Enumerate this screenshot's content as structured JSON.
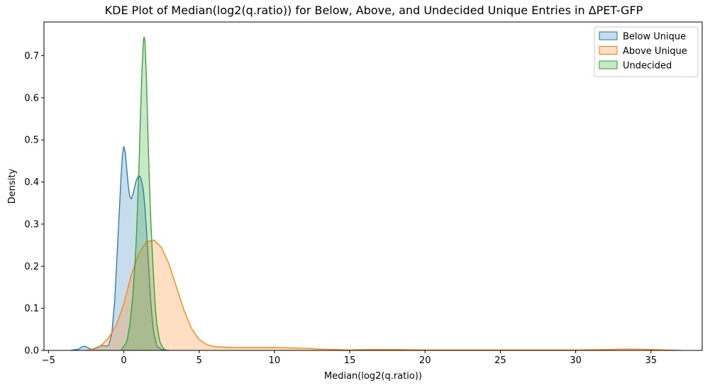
{
  "chart_data": {
    "type": "area",
    "title": "KDE Plot of Median(log2(q.ratio)) for Below, Above, and Undecided Unique Entries in ΔPET-GFP",
    "xlabel": "Median(log2(q.ratio))",
    "ylabel": "Density",
    "xlim": [
      -5.3,
      38.4
    ],
    "ylim": [
      0,
      0.78
    ],
    "xticks": [
      -5,
      0,
      5,
      10,
      15,
      20,
      25,
      30,
      35
    ],
    "yticks": [
      0.0,
      0.1,
      0.2,
      0.3,
      0.4,
      0.5,
      0.6,
      0.7
    ],
    "xtick_labels": [
      "−5",
      "0",
      "5",
      "10",
      "15",
      "20",
      "25",
      "30",
      "35"
    ],
    "ytick_labels": [
      "0.0",
      "0.1",
      "0.2",
      "0.3",
      "0.4",
      "0.5",
      "0.6",
      "0.7"
    ],
    "grid": false,
    "legend_position": "top-right",
    "series": [
      {
        "name": "Below Unique",
        "color": "#1f77b4",
        "x": [
          -3.5,
          -3.0,
          -2.8,
          -2.6,
          -2.4,
          -2.2,
          -2.0,
          -1.8,
          -1.6,
          -1.4,
          -1.2,
          -1.0,
          -0.8,
          -0.6,
          -0.4,
          -0.2,
          -0.1,
          0.0,
          0.1,
          0.2,
          0.3,
          0.4,
          0.5,
          0.6,
          0.7,
          0.8,
          0.9,
          1.0,
          1.1,
          1.2,
          1.3,
          1.4,
          1.5,
          1.6,
          1.7,
          1.8,
          1.9,
          2.0,
          2.2,
          2.5,
          3.0
        ],
        "y": [
          0.0,
          0.003,
          0.008,
          0.01,
          0.007,
          0.003,
          0.003,
          0.006,
          0.01,
          0.012,
          0.01,
          0.012,
          0.04,
          0.12,
          0.26,
          0.4,
          0.46,
          0.485,
          0.47,
          0.43,
          0.39,
          0.365,
          0.36,
          0.37,
          0.385,
          0.4,
          0.41,
          0.415,
          0.412,
          0.4,
          0.38,
          0.34,
          0.29,
          0.23,
          0.17,
          0.11,
          0.07,
          0.04,
          0.01,
          0.002,
          0.0
        ]
      },
      {
        "name": "Above Unique",
        "color": "#ff7f0e",
        "x": [
          -2.5,
          -2.0,
          -1.5,
          -1.0,
          -0.5,
          0.0,
          0.5,
          1.0,
          1.5,
          2.0,
          2.5,
          3.0,
          3.5,
          4.0,
          4.5,
          5.0,
          5.5,
          6.0,
          7.0,
          8.0,
          9.0,
          10.0,
          11.0,
          12.0,
          13.0,
          14.0,
          15.0,
          16.0,
          18.0,
          20.0,
          24.0,
          28.0,
          30.0,
          32.0,
          33.0,
          34.0,
          35.0,
          36.0,
          37.0
        ],
        "y": [
          0.0,
          0.004,
          0.012,
          0.03,
          0.06,
          0.11,
          0.18,
          0.23,
          0.258,
          0.262,
          0.245,
          0.205,
          0.15,
          0.095,
          0.052,
          0.026,
          0.014,
          0.009,
          0.007,
          0.007,
          0.007,
          0.007,
          0.006,
          0.005,
          0.003,
          0.002,
          0.001,
          0.002,
          0.002,
          0.001,
          0.001,
          0.001,
          0.001,
          0.002,
          0.003,
          0.003,
          0.002,
          0.001,
          0.0
        ]
      },
      {
        "name": "Undecided",
        "color": "#2ca02c",
        "x": [
          -0.2,
          0.2,
          0.4,
          0.6,
          0.8,
          0.9,
          1.0,
          1.1,
          1.2,
          1.3,
          1.35,
          1.4,
          1.5,
          1.6,
          1.7,
          1.8,
          1.9,
          2.0,
          2.1,
          2.2,
          2.4,
          2.6,
          2.8
        ],
        "y": [
          0.0,
          0.02,
          0.06,
          0.13,
          0.24,
          0.33,
          0.43,
          0.55,
          0.66,
          0.735,
          0.745,
          0.735,
          0.65,
          0.52,
          0.4,
          0.3,
          0.23,
          0.16,
          0.1,
          0.06,
          0.02,
          0.006,
          0.0
        ]
      }
    ]
  }
}
